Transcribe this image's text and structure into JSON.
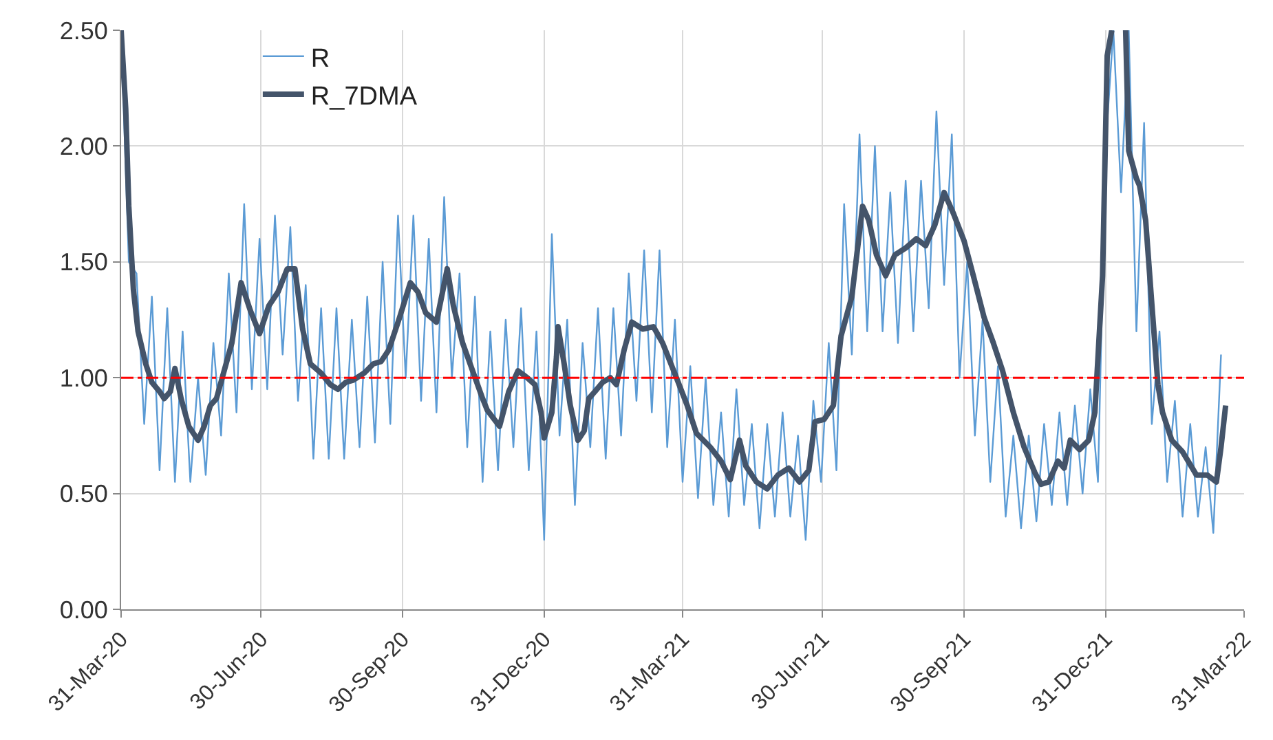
{
  "chart_data": {
    "type": "line",
    "xlim": [
      "2020-03-31",
      "2022-03-31"
    ],
    "xticks": [
      {
        "value": "2020-03-31",
        "label": "31-Mar-20"
      },
      {
        "value": "2020-06-30",
        "label": "30-Jun-20"
      },
      {
        "value": "2020-09-30",
        "label": "30-Sep-20"
      },
      {
        "value": "2020-12-31",
        "label": "31-Dec-20"
      },
      {
        "value": "2021-03-31",
        "label": "31-Mar-21"
      },
      {
        "value": "2021-06-30",
        "label": "30-Jun-21"
      },
      {
        "value": "2021-09-30",
        "label": "30-Sep-21"
      },
      {
        "value": "2021-12-31",
        "label": "31-Dec-21"
      },
      {
        "value": "2022-03-31",
        "label": "31-Mar-22"
      }
    ],
    "ylim": [
      0,
      2.5
    ],
    "yticks": [
      {
        "value": 0,
        "label": "0.00"
      },
      {
        "value": 0.5,
        "label": "0.50"
      },
      {
        "value": 1,
        "label": "1.00"
      },
      {
        "value": 1.5,
        "label": "1.50"
      },
      {
        "value": 2,
        "label": "2.00"
      },
      {
        "value": 2.5,
        "label": "2.50"
      }
    ],
    "grid": true,
    "legend": "top left",
    "marker": "none",
    "ref_lines": [
      {
        "axis": "y",
        "value": 1,
        "color": "#ff0000",
        "line_style": "dashed"
      }
    ],
    "series": [
      {
        "name": "R",
        "color": "#5b9bd5",
        "x": [
          "2020-03-31",
          "2020-04-05",
          "2020-04-10",
          "2020-04-15",
          "2020-04-20",
          "2020-04-25",
          "2020-04-30",
          "2020-05-05",
          "2020-05-10",
          "2020-05-15",
          "2020-05-20",
          "2020-05-25",
          "2020-05-30",
          "2020-06-04",
          "2020-06-09",
          "2020-06-14",
          "2020-06-19",
          "2020-06-24",
          "2020-06-29",
          "2020-07-04",
          "2020-07-09",
          "2020-07-14",
          "2020-07-19",
          "2020-07-24",
          "2020-07-29",
          "2020-08-03",
          "2020-08-08",
          "2020-08-13",
          "2020-08-18",
          "2020-08-23",
          "2020-08-28",
          "2020-09-02",
          "2020-09-07",
          "2020-09-12",
          "2020-09-17",
          "2020-09-22",
          "2020-09-27",
          "2020-10-02",
          "2020-10-07",
          "2020-10-12",
          "2020-10-17",
          "2020-10-22",
          "2020-10-27",
          "2020-11-01",
          "2020-11-06",
          "2020-11-11",
          "2020-11-16",
          "2020-11-21",
          "2020-11-26",
          "2020-12-01",
          "2020-12-06",
          "2020-12-11",
          "2020-12-16",
          "2020-12-21",
          "2020-12-26",
          "2020-12-31",
          "2021-01-05",
          "2021-01-10",
          "2021-01-15",
          "2021-01-20",
          "2021-01-25",
          "2021-01-30",
          "2021-02-04",
          "2021-02-09",
          "2021-02-14",
          "2021-02-19",
          "2021-02-24",
          "2021-03-01",
          "2021-03-06",
          "2021-03-11",
          "2021-03-16",
          "2021-03-21",
          "2021-03-26",
          "2021-03-31",
          "2021-04-05",
          "2021-04-10",
          "2021-04-15",
          "2021-04-20",
          "2021-04-25",
          "2021-04-30",
          "2021-05-05",
          "2021-05-10",
          "2021-05-15",
          "2021-05-20",
          "2021-05-25",
          "2021-05-30",
          "2021-06-04",
          "2021-06-09",
          "2021-06-14",
          "2021-06-19",
          "2021-06-24",
          "2021-06-29",
          "2021-07-04",
          "2021-07-09",
          "2021-07-14",
          "2021-07-19",
          "2021-07-24",
          "2021-07-29",
          "2021-08-03",
          "2021-08-08",
          "2021-08-13",
          "2021-08-18",
          "2021-08-23",
          "2021-08-28",
          "2021-09-02",
          "2021-09-07",
          "2021-09-12",
          "2021-09-17",
          "2021-09-22",
          "2021-09-27",
          "2021-10-02",
          "2021-10-07",
          "2021-10-12",
          "2021-10-17",
          "2021-10-22",
          "2021-10-27",
          "2021-11-01",
          "2021-11-06",
          "2021-11-11",
          "2021-11-16",
          "2021-11-21",
          "2021-11-26",
          "2021-12-01",
          "2021-12-06",
          "2021-12-11",
          "2021-12-16",
          "2021-12-21",
          "2021-12-26",
          "2021-12-31",
          "2022-01-05",
          "2022-01-10",
          "2022-01-15",
          "2022-01-20",
          "2022-01-25",
          "2022-01-30",
          "2022-02-04",
          "2022-02-09",
          "2022-02-14",
          "2022-02-19",
          "2022-02-24",
          "2022-03-01",
          "2022-03-06",
          "2022-03-11",
          "2022-03-16"
        ],
        "values": [
          2.5,
          1.5,
          1.45,
          0.8,
          1.35,
          0.6,
          1.3,
          0.55,
          1.2,
          0.55,
          1.0,
          0.58,
          1.15,
          0.75,
          1.45,
          0.85,
          1.75,
          0.95,
          1.6,
          0.95,
          1.7,
          1.1,
          1.65,
          0.9,
          1.4,
          0.65,
          1.3,
          0.65,
          1.3,
          0.65,
          1.25,
          0.7,
          1.35,
          0.72,
          1.5,
          0.8,
          1.7,
          1.0,
          1.7,
          0.9,
          1.6,
          0.85,
          1.78,
          1.0,
          1.45,
          0.7,
          1.35,
          0.55,
          1.2,
          0.6,
          1.25,
          0.7,
          1.3,
          0.6,
          1.2,
          0.3,
          1.62,
          0.75,
          1.25,
          0.45,
          1.15,
          0.7,
          1.3,
          0.65,
          1.3,
          0.75,
          1.45,
          0.9,
          1.55,
          0.85,
          1.55,
          0.7,
          1.25,
          0.55,
          1.05,
          0.48,
          1.0,
          0.45,
          0.85,
          0.4,
          0.95,
          0.45,
          0.8,
          0.35,
          0.8,
          0.4,
          0.85,
          0.4,
          0.75,
          0.3,
          0.9,
          0.55,
          1.15,
          0.6,
          1.75,
          1.1,
          2.05,
          1.2,
          2.0,
          1.2,
          1.8,
          1.15,
          1.85,
          1.2,
          1.85,
          1.3,
          2.15,
          1.4,
          2.05,
          1.0,
          1.5,
          0.75,
          1.25,
          0.55,
          1.05,
          0.4,
          0.75,
          0.35,
          0.75,
          0.38,
          0.8,
          0.45,
          0.85,
          0.45,
          0.88,
          0.5,
          0.95,
          0.55,
          2.0,
          2.5,
          1.8,
          2.5,
          1.2,
          2.1,
          0.8,
          1.2,
          0.55,
          0.9,
          0.4,
          0.8,
          0.4,
          0.7,
          0.33,
          1.1
        ]
      },
      {
        "name": "R_7DMA",
        "color": "#44546a",
        "x": [
          "2020-03-31",
          "2020-04-03",
          "2020-04-05",
          "2020-04-08",
          "2020-04-11",
          "2020-04-16",
          "2020-04-20",
          "2020-04-25",
          "2020-04-28",
          "2020-05-02",
          "2020-05-05",
          "2020-05-09",
          "2020-05-14",
          "2020-05-20",
          "2020-05-24",
          "2020-05-28",
          "2020-06-01",
          "2020-06-06",
          "2020-06-11",
          "2020-06-17",
          "2020-06-23",
          "2020-06-29",
          "2020-07-05",
          "2020-07-11",
          "2020-07-17",
          "2020-07-22",
          "2020-07-27",
          "2020-08-01",
          "2020-08-08",
          "2020-08-14",
          "2020-08-19",
          "2020-08-24",
          "2020-08-29",
          "2020-09-05",
          "2020-09-11",
          "2020-09-16",
          "2020-09-21",
          "2020-09-28",
          "2020-10-05",
          "2020-10-10",
          "2020-10-15",
          "2020-10-22",
          "2020-10-29",
          "2020-11-02",
          "2020-11-08",
          "2020-11-15",
          "2020-11-21",
          "2020-11-24",
          "2020-12-02",
          "2020-12-08",
          "2020-12-14",
          "2020-12-20",
          "2020-12-25",
          "2020-12-29",
          "2020-12-31",
          "2021-01-05",
          "2021-01-08",
          "2021-01-09",
          "2021-01-13",
          "2021-01-17",
          "2021-01-22",
          "2021-01-26",
          "2021-01-29",
          "2021-02-02",
          "2021-02-07",
          "2021-02-12",
          "2021-02-16",
          "2021-02-21",
          "2021-02-26",
          "2021-03-05",
          "2021-03-12",
          "2021-03-18",
          "2021-03-27",
          "2021-04-03",
          "2021-04-09",
          "2021-04-18",
          "2021-04-25",
          "2021-05-01",
          "2021-05-07",
          "2021-05-11",
          "2021-05-18",
          "2021-05-25",
          "2021-06-01",
          "2021-06-08",
          "2021-06-15",
          "2021-06-21",
          "2021-06-25",
          "2021-07-01",
          "2021-07-07",
          "2021-07-12",
          "2021-07-19",
          "2021-07-26",
          "2021-07-30",
          "2021-08-04",
          "2021-08-10",
          "2021-08-16",
          "2021-08-23",
          "2021-08-30",
          "2021-09-05",
          "2021-09-11",
          "2021-09-17",
          "2021-09-23",
          "2021-09-30",
          "2021-10-06",
          "2021-10-13",
          "2021-10-19",
          "2021-10-25",
          "2021-11-01",
          "2021-11-08",
          "2021-11-15",
          "2021-11-19",
          "2021-11-24",
          "2021-11-30",
          "2021-12-04",
          "2021-12-08",
          "2021-12-14",
          "2021-12-20",
          "2021-12-24",
          "2021-12-29",
          "2022-01-01",
          "2022-01-04",
          "2022-01-08",
          "2022-01-13",
          "2022-01-15",
          "2022-01-20",
          "2022-01-22",
          "2022-01-26",
          "2022-01-30",
          "2022-02-03",
          "2022-02-06",
          "2022-02-12",
          "2022-02-19",
          "2022-02-28",
          "2022-03-07",
          "2022-03-13",
          "2022-03-16",
          "2022-03-19"
        ],
        "values": [
          2.5,
          2.16,
          1.74,
          1.38,
          1.2,
          1.06,
          0.98,
          0.94,
          0.91,
          0.94,
          1.04,
          0.91,
          0.79,
          0.73,
          0.79,
          0.88,
          0.91,
          1.03,
          1.15,
          1.41,
          1.29,
          1.19,
          1.31,
          1.37,
          1.47,
          1.47,
          1.21,
          1.06,
          1.02,
          0.97,
          0.95,
          0.98,
          0.99,
          1.02,
          1.06,
          1.07,
          1.12,
          1.26,
          1.41,
          1.37,
          1.28,
          1.24,
          1.47,
          1.31,
          1.15,
          1.02,
          0.91,
          0.86,
          0.79,
          0.94,
          1.03,
          1.0,
          0.97,
          0.85,
          0.74,
          0.85,
          1.09,
          1.22,
          1.06,
          0.88,
          0.73,
          0.77,
          0.91,
          0.94,
          0.98,
          1.0,
          0.97,
          1.12,
          1.24,
          1.21,
          1.22,
          1.15,
          1.0,
          0.88,
          0.76,
          0.7,
          0.64,
          0.56,
          0.73,
          0.62,
          0.55,
          0.52,
          0.58,
          0.61,
          0.55,
          0.6,
          0.81,
          0.82,
          0.88,
          1.18,
          1.35,
          1.74,
          1.68,
          1.53,
          1.44,
          1.53,
          1.56,
          1.6,
          1.57,
          1.66,
          1.8,
          1.71,
          1.59,
          1.44,
          1.26,
          1.15,
          1.03,
          0.85,
          0.7,
          0.59,
          0.54,
          0.55,
          0.64,
          0.61,
          0.73,
          0.69,
          0.73,
          0.85,
          1.44,
          2.39,
          2.5,
          null,
          2.5,
          1.98,
          1.86,
          1.83,
          1.68,
          1.32,
          0.97,
          0.85,
          0.73,
          0.68,
          0.58,
          0.58,
          0.55,
          0.7,
          0.88
        ]
      }
    ]
  }
}
